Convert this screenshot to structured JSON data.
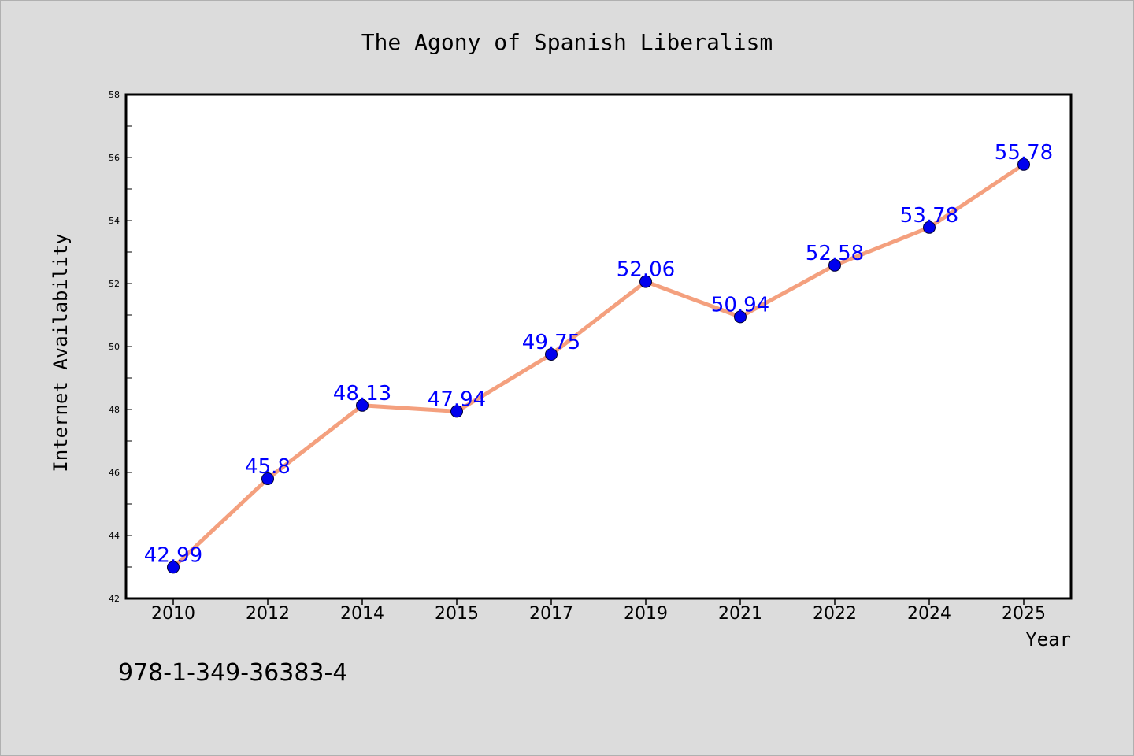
{
  "chart_data": {
    "type": "line",
    "title": "The Agony of Spanish Liberalism",
    "xlabel": "Year",
    "ylabel": "Internet Availability",
    "categories": [
      "2010",
      "2012",
      "2014",
      "2015",
      "2017",
      "2019",
      "2021",
      "2022",
      "2024",
      "2025"
    ],
    "series": [
      {
        "values": [
          42.99,
          45.8,
          48.13,
          47.94,
          49.75,
          52.06,
          50.94,
          52.58,
          53.78,
          55.78
        ],
        "labels": [
          "42.99",
          "45.8",
          "48.13",
          "47.94",
          "49.75",
          "52.06",
          "50.94",
          "52.58",
          "53.78",
          "55.78"
        ],
        "line_color": "#f4a07e",
        "marker_color": "#0000ee",
        "label_color": "#0000ff"
      }
    ],
    "ylim": [
      42,
      58
    ],
    "yticks": [
      "42",
      "44",
      "46",
      "48",
      "50",
      "52",
      "54",
      "56",
      "58"
    ],
    "grid": false,
    "legend": "none",
    "annotation": "978-1-349-36383-4"
  },
  "colors": {
    "background": "#dcdcdc",
    "plot_background": "#ffffff",
    "axis": "#000000"
  }
}
